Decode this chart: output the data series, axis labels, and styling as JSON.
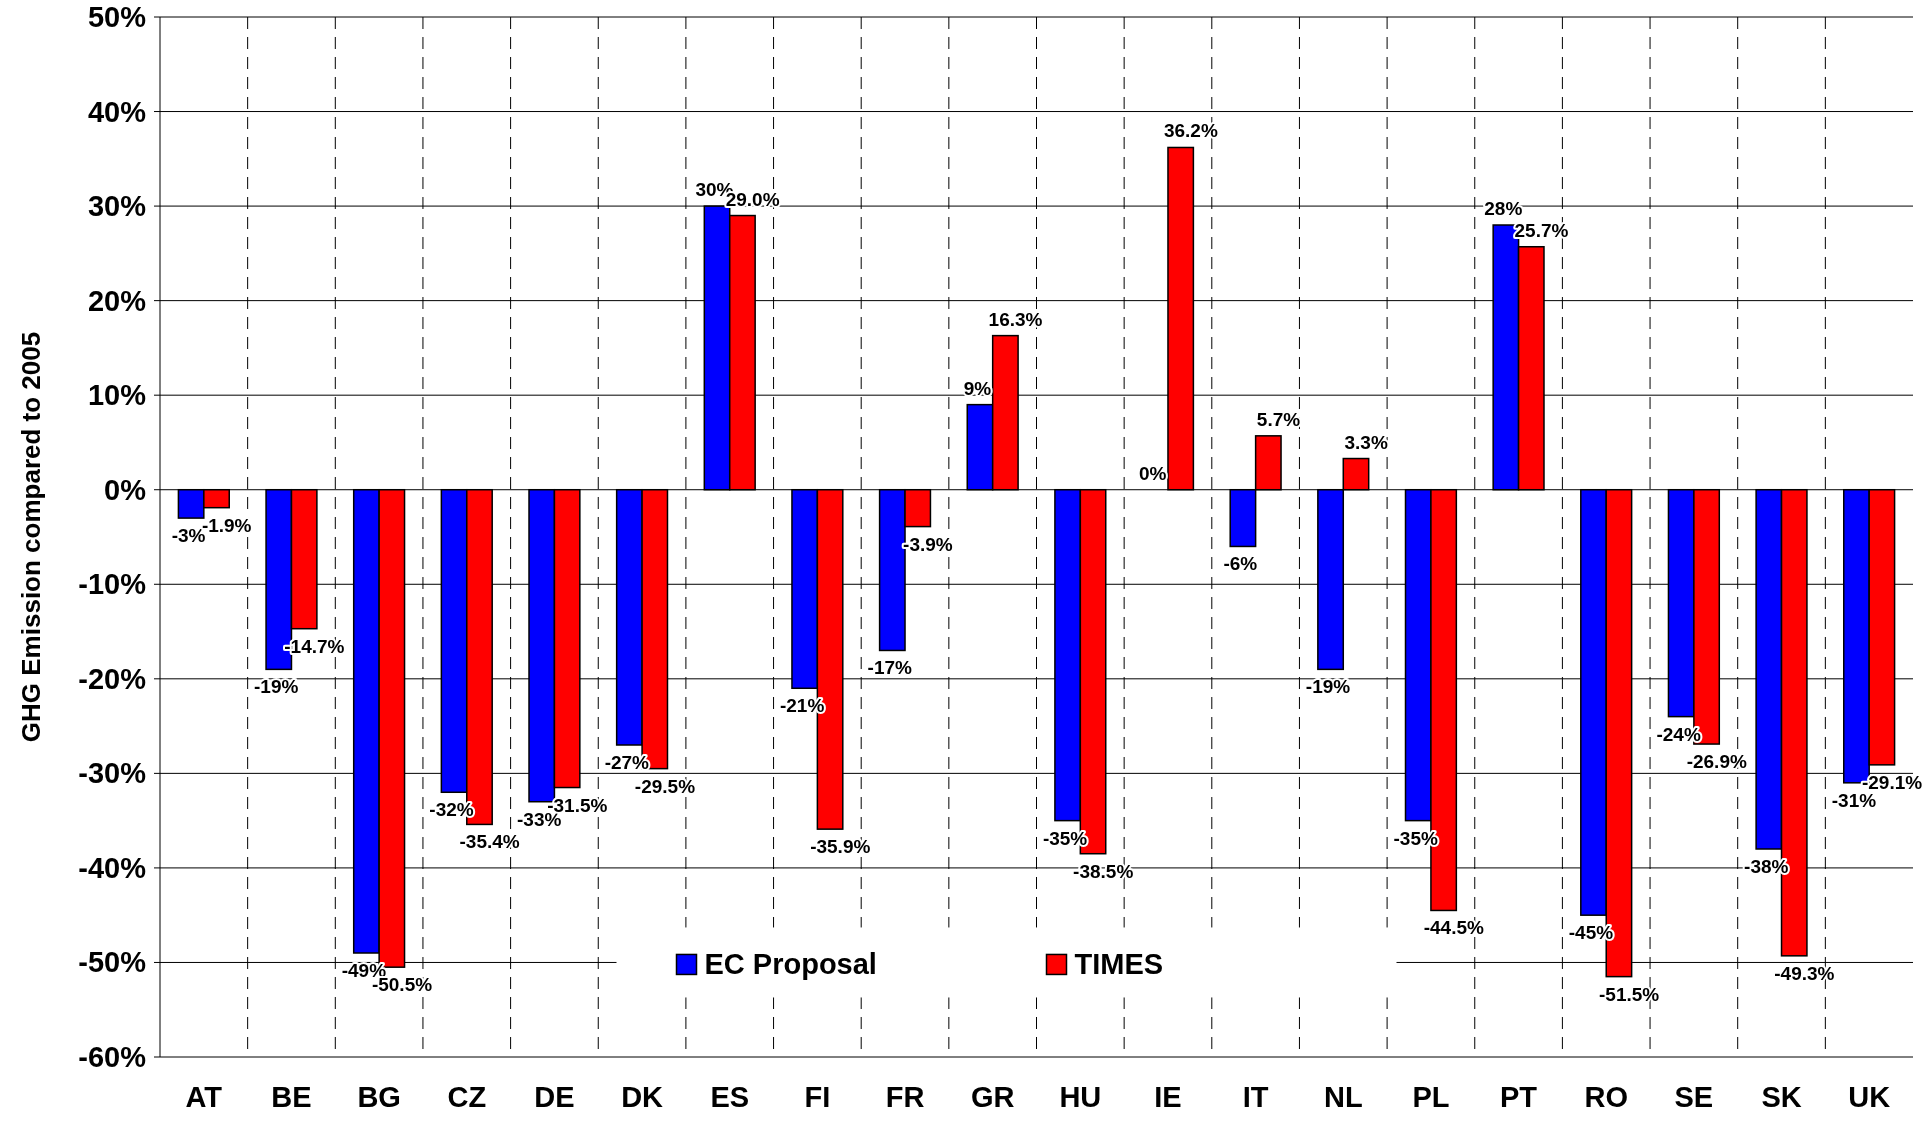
{
  "chart_data": {
    "type": "bar",
    "ylabel": "GHG Emission compared to 2005",
    "categories": [
      "AT",
      "BE",
      "BG",
      "CZ",
      "DE",
      "DK",
      "ES",
      "FI",
      "FR",
      "GR",
      "HU",
      "IE",
      "IT",
      "NL",
      "PL",
      "PT",
      "RO",
      "SE",
      "SK",
      "UK"
    ],
    "series": [
      {
        "name": "EC Proposal",
        "color": "#0000ff",
        "values": [
          -3,
          -19,
          -49,
          -32,
          -33,
          -27,
          30,
          -21,
          -17,
          9,
          -35,
          0,
          -6,
          -19,
          -35,
          28,
          -45,
          -24,
          -38,
          -31
        ],
        "value_labels": [
          "-3%",
          "-19%",
          "-49%",
          "-32%",
          "-33%",
          "-27%",
          "30%",
          "-21%",
          "-17%",
          "9%",
          "-35%",
          "0%",
          "-6%",
          "-19%",
          "-35%",
          "28%",
          "-45%",
          "-24%",
          "-38%",
          "-31%"
        ]
      },
      {
        "name": "TIMES",
        "color": "#ff0000",
        "values": [
          -1.9,
          -14.7,
          -50.5,
          -35.4,
          -31.5,
          -29.5,
          29.0,
          -35.9,
          -3.9,
          16.3,
          -38.5,
          36.2,
          5.7,
          3.3,
          -44.5,
          25.7,
          -51.5,
          -26.9,
          -49.3,
          -29.1
        ],
        "value_labels": [
          "-1.9%",
          "-14.7%",
          "-50.5%",
          "-35.4%",
          "-31.5%",
          "-29.5%",
          "29.0%",
          "-35.9%",
          "-3.9%",
          "16.3%",
          "-38.5%",
          "36.2%",
          "5.7%",
          "3.3%",
          "-44.5%",
          "25.7%",
          "-51.5%",
          "-26.9%",
          "-49.3%",
          "-29.1%"
        ]
      }
    ],
    "ylim": [
      -60,
      50
    ],
    "yticks": [
      {
        "value": -60,
        "label": "-60%"
      },
      {
        "value": -50,
        "label": "-50%"
      },
      {
        "value": -40,
        "label": "-40%"
      },
      {
        "value": -30,
        "label": "-30%"
      },
      {
        "value": -20,
        "label": "-20%"
      },
      {
        "value": -10,
        "label": "-10%"
      },
      {
        "value": 0,
        "label": "0%"
      },
      {
        "value": 10,
        "label": "10%"
      },
      {
        "value": 20,
        "label": "20%"
      },
      {
        "value": 30,
        "label": "30%"
      },
      {
        "value": 40,
        "label": "40%"
      },
      {
        "value": 50,
        "label": "50%"
      }
    ],
    "grid": "y",
    "legend": "bottom"
  }
}
